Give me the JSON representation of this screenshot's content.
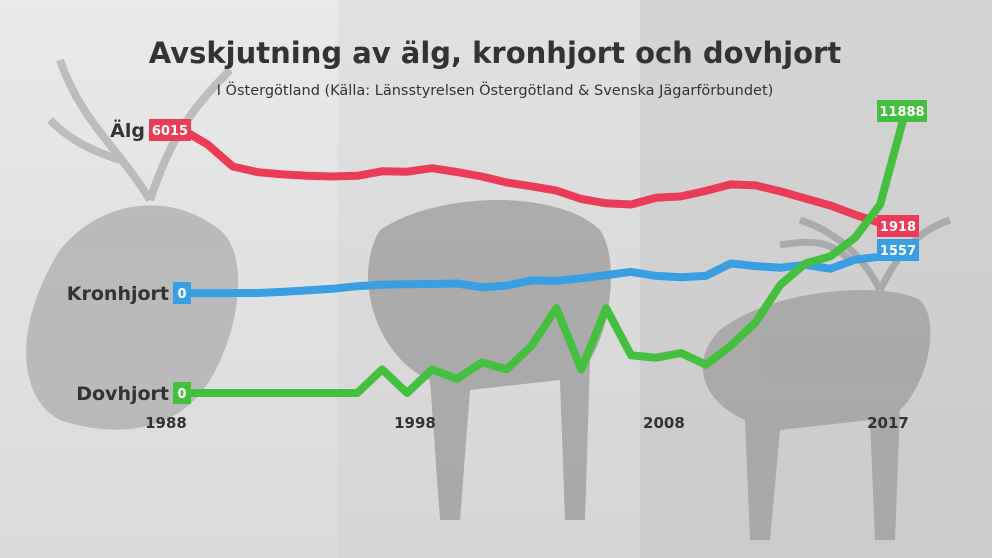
{
  "colors": {
    "alg": "#ea3b57",
    "kronhjort": "#3a9ee3",
    "dovhjort": "#45bf3f",
    "text": "#333333"
  },
  "chart_data": {
    "type": "line",
    "title": "Avskjutning av älg, kronhjort och dovhjort",
    "subtitle": "I Östergötland (Källa: Länsstyrelsen Östergötland & Svenska Jägarförbundet)",
    "x_ticks": [
      "1988",
      "1998",
      "2008",
      "2017"
    ],
    "x": [
      1988,
      1989,
      1990,
      1991,
      1992,
      1993,
      1994,
      1995,
      1996,
      1997,
      1998,
      1999,
      2000,
      2001,
      2002,
      2003,
      2004,
      2005,
      2006,
      2007,
      2008,
      2009,
      2010,
      2011,
      2012,
      2013,
      2014,
      2015,
      2016,
      2017
    ],
    "ylim": [
      0,
      12000
    ],
    "series": [
      {
        "name": "Älg",
        "color": "#ea3b57",
        "start_label": "6015",
        "end_label": "1918",
        "values": [
          6015,
          5400,
          4490,
          4250,
          4160,
          4100,
          4070,
          4100,
          4290,
          4270,
          4420,
          4260,
          4070,
          3820,
          3660,
          3480,
          3130,
          2950,
          2900,
          3180,
          3240,
          3470,
          3740,
          3700,
          3450,
          3150,
          2860,
          2470,
          2130,
          1918
        ]
      },
      {
        "name": "Kronhjort",
        "color": "#3a9ee3",
        "start_label": "0",
        "end_label": "1557",
        "values": [
          0,
          0,
          0,
          0,
          40,
          100,
          160,
          260,
          320,
          330,
          340,
          360,
          220,
          280,
          480,
          460,
          560,
          680,
          800,
          650,
          600,
          650,
          1120,
          1020,
          960,
          1070,
          920,
          1270,
          1380,
          1557
        ]
      },
      {
        "name": "Dovhjort",
        "color": "#45bf3f",
        "start_label": "0",
        "end_label": "11888",
        "values": [
          0,
          0,
          0,
          0,
          0,
          0,
          0,
          0,
          1000,
          0,
          1000,
          600,
          1300,
          1000,
          2000,
          3600,
          1000,
          3600,
          1600,
          1500,
          1700,
          1200,
          2000,
          3000,
          4600,
          5500,
          5800,
          6600,
          8000,
          11888
        ]
      }
    ]
  }
}
